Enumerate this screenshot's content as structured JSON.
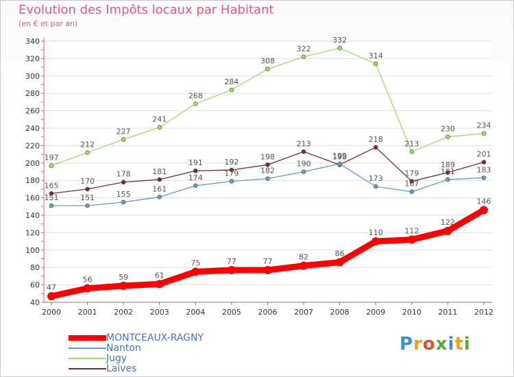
{
  "header": {
    "title": "Evolution des Impôts locaux par Habitant",
    "subtitle": "(en € et par an)"
  },
  "logo": {
    "text": "Proxiti",
    "colors": [
      "#3a8ed6",
      "#f0a020",
      "#e05030",
      "#5aa832",
      "#3a8ed6",
      "#f0a020",
      "#5aa832"
    ]
  },
  "chart_data": {
    "type": "line",
    "x": [
      2000,
      2001,
      2002,
      2003,
      2004,
      2005,
      2006,
      2007,
      2008,
      2009,
      2010,
      2011,
      2012
    ],
    "ylim": [
      40,
      340
    ],
    "yticks": [
      40,
      60,
      80,
      100,
      120,
      140,
      160,
      180,
      200,
      220,
      240,
      260,
      280,
      300,
      320,
      340
    ],
    "grid": "horizontal",
    "legend_placement": "bottom-left",
    "series": [
      {
        "name": "MONTCEAUX-RAGNY",
        "color": "#ff0000",
        "values": [
          47,
          56,
          59,
          61,
          75,
          77,
          77,
          82,
          86,
          110,
          112,
          122,
          146
        ]
      },
      {
        "name": "Nanton",
        "color": "#6699cc",
        "values": [
          151,
          151,
          155,
          161,
          174,
          179,
          182,
          190,
          199,
          173,
          167,
          181,
          183
        ]
      },
      {
        "name": "Jugy",
        "color": "#99dd66",
        "values": [
          197,
          212,
          227,
          241,
          268,
          284,
          308,
          322,
          332,
          314,
          213,
          230,
          234
        ]
      },
      {
        "name": "Laives",
        "color": "#7a2a2a",
        "values": [
          165,
          170,
          178,
          181,
          191,
          192,
          198,
          213,
          198,
          218,
          179,
          189,
          201
        ]
      }
    ]
  }
}
